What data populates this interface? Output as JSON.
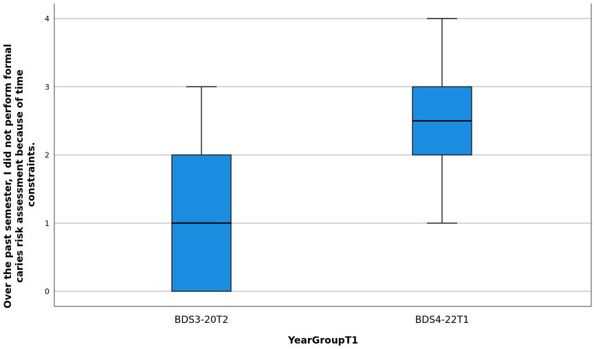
{
  "chart_data": {
    "type": "box",
    "xlabel": "YearGroupT1",
    "ylabel_lines": [
      "Over the past semester, I did not perform formal",
      "caries risk assessment because of time",
      "constraints."
    ],
    "ylim": [
      0,
      4
    ],
    "y_ticks": [
      "0",
      "1",
      "2",
      "3",
      "4"
    ],
    "grid": true,
    "box_color": "#1a8de0",
    "categories": [
      "BDS3-20T2",
      "BDS4-22T1"
    ],
    "boxes": [
      {
        "category": "BDS3-20T2",
        "min": 0,
        "q1": 0,
        "median": 1,
        "q3": 2,
        "max": 3
      },
      {
        "category": "BDS4-22T1",
        "min": 1,
        "q1": 2,
        "median": 2.5,
        "q3": 3,
        "max": 4
      }
    ]
  }
}
